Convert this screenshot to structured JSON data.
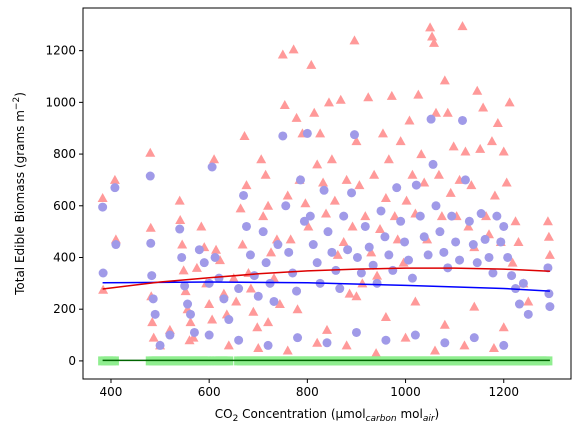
{
  "chart_data": {
    "type": "scatter",
    "title": "",
    "xlabel": {
      "main": "CO",
      "sub2": "2",
      "mid": " Concentration (µmol",
      "sub": "carbon",
      "end": " mol",
      "sub3": "air",
      "close": ")"
    },
    "ylabel": {
      "main": "Total Edible Biomass (grams m",
      "sup": "−2",
      "close": ")"
    },
    "xlim": [
      343,
      1337
    ],
    "ylim": [
      -70,
      1365
    ],
    "xticks": [
      400,
      600,
      800,
      1000,
      1200
    ],
    "yticks": [
      0,
      200,
      400,
      600,
      800,
      1000,
      1200
    ],
    "grid": false,
    "series": [
      {
        "marker": "triangle",
        "color": "#ff9999",
        "points": [
          [
            383,
            630
          ],
          [
            384,
            275
          ],
          [
            408,
            700
          ],
          [
            410,
            470
          ],
          [
            480,
            805
          ],
          [
            481,
            515
          ],
          [
            482,
            250
          ],
          [
            484,
            150
          ],
          [
            487,
            90
          ],
          [
            500,
            60
          ],
          [
            520,
            120
          ],
          [
            540,
            620
          ],
          [
            541,
            545
          ],
          [
            545,
            450
          ],
          [
            548,
            350
          ],
          [
            552,
            270
          ],
          [
            556,
            200
          ],
          [
            562,
            150
          ],
          [
            568,
            90
          ],
          [
            575,
            360
          ],
          [
            584,
            520
          ],
          [
            590,
            440
          ],
          [
            594,
            300
          ],
          [
            600,
            220
          ],
          [
            606,
            160
          ],
          [
            610,
            780
          ],
          [
            614,
            430
          ],
          [
            622,
            390
          ],
          [
            630,
            260
          ],
          [
            636,
            180
          ],
          [
            650,
            320
          ],
          [
            655,
            230
          ],
          [
            664,
            590
          ],
          [
            668,
            450
          ],
          [
            672,
            870
          ],
          [
            676,
            680
          ],
          [
            680,
            340
          ],
          [
            685,
            280
          ],
          [
            690,
            190
          ],
          [
            698,
            130
          ],
          [
            706,
            780
          ],
          [
            710,
            560
          ],
          [
            715,
            720
          ],
          [
            720,
            600
          ],
          [
            726,
            420
          ],
          [
            732,
            320
          ],
          [
            738,
            470
          ],
          [
            744,
            220
          ],
          [
            750,
            1185
          ],
          [
            754,
            990
          ],
          [
            760,
            640
          ],
          [
            766,
            470
          ],
          [
            772,
            1205
          ],
          [
            778,
            940
          ],
          [
            784,
            700
          ],
          [
            790,
            880
          ],
          [
            796,
            610
          ],
          [
            802,
            520
          ],
          [
            808,
            1145
          ],
          [
            814,
            960
          ],
          [
            820,
            760
          ],
          [
            826,
            880
          ],
          [
            832,
            690
          ],
          [
            838,
            570
          ],
          [
            844,
            1000
          ],
          [
            850,
            780
          ],
          [
            856,
            620
          ],
          [
            862,
            410
          ],
          [
            868,
            1010
          ],
          [
            874,
            460
          ],
          [
            880,
            700
          ],
          [
            886,
            260
          ],
          [
            892,
            520
          ],
          [
            896,
            1240
          ],
          [
            900,
            850
          ],
          [
            906,
            680
          ],
          [
            912,
            300
          ],
          [
            918,
            560
          ],
          [
            924,
            1020
          ],
          [
            930,
            420
          ],
          [
            936,
            720
          ],
          [
            942,
            330
          ],
          [
            948,
            510
          ],
          [
            954,
            880
          ],
          [
            960,
            630
          ],
          [
            966,
            780
          ],
          [
            972,
            1025
          ],
          [
            978,
            560
          ],
          [
            984,
            470
          ],
          [
            990,
            850
          ],
          [
            996,
            380
          ],
          [
            1002,
            620
          ],
          [
            1008,
            930
          ],
          [
            1014,
            720
          ],
          [
            1020,
            570
          ],
          [
            1026,
            1030
          ],
          [
            1032,
            800
          ],
          [
            1038,
            690
          ],
          [
            1044,
            470
          ],
          [
            1050,
            1290
          ],
          [
            1054,
            1255
          ],
          [
            1058,
            1230
          ],
          [
            1062,
            960
          ],
          [
            1068,
            720
          ],
          [
            1074,
            560
          ],
          [
            1080,
            1085
          ],
          [
            1086,
            960
          ],
          [
            1092,
            650
          ],
          [
            1098,
            830
          ],
          [
            1104,
            560
          ],
          [
            1110,
            700
          ],
          [
            1116,
            1295
          ],
          [
            1122,
            810
          ],
          [
            1128,
            520
          ],
          [
            1134,
            680
          ],
          [
            1140,
            440
          ],
          [
            1146,
            1045
          ],
          [
            1152,
            820
          ],
          [
            1158,
            980
          ],
          [
            1164,
            560
          ],
          [
            1170,
            490
          ],
          [
            1176,
            850
          ],
          [
            1182,
            640
          ],
          [
            1188,
            920
          ],
          [
            1194,
            460
          ],
          [
            1200,
            810
          ],
          [
            1206,
            690
          ],
          [
            1212,
            1000
          ],
          [
            1218,
            380
          ],
          [
            1224,
            540
          ],
          [
            1230,
            460
          ],
          [
            1240,
            300
          ],
          [
            1250,
            230
          ],
          [
            1290,
            540
          ],
          [
            1292,
            480
          ],
          [
            1294,
            410
          ],
          [
            560,
            80
          ],
          [
            640,
            60
          ],
          [
            700,
            50
          ],
          [
            760,
            40
          ],
          [
            820,
            70
          ],
          [
            880,
            60
          ],
          [
            940,
            30
          ],
          [
            1000,
            90
          ],
          [
            1060,
            40
          ],
          [
            1120,
            60
          ],
          [
            1180,
            50
          ],
          [
            720,
            150
          ],
          [
            780,
            200
          ],
          [
            840,
            120
          ],
          [
            900,
            250
          ],
          [
            960,
            170
          ],
          [
            1020,
            230
          ],
          [
            1080,
            140
          ],
          [
            1140,
            210
          ],
          [
            1200,
            130
          ]
        ]
      },
      {
        "marker": "circle",
        "color": "#a09ae8",
        "points": [
          [
            383,
            595
          ],
          [
            384,
            340
          ],
          [
            408,
            670
          ],
          [
            410,
            450
          ],
          [
            480,
            715
          ],
          [
            481,
            455
          ],
          [
            483,
            330
          ],
          [
            486,
            240
          ],
          [
            490,
            180
          ],
          [
            500,
            60
          ],
          [
            520,
            100
          ],
          [
            540,
            510
          ],
          [
            544,
            400
          ],
          [
            550,
            290
          ],
          [
            556,
            220
          ],
          [
            562,
            180
          ],
          [
            570,
            110
          ],
          [
            580,
            430
          ],
          [
            590,
            380
          ],
          [
            600,
            300
          ],
          [
            606,
            750
          ],
          [
            612,
            400
          ],
          [
            620,
            320
          ],
          [
            630,
            240
          ],
          [
            640,
            160
          ],
          [
            660,
            280
          ],
          [
            670,
            640
          ],
          [
            676,
            520
          ],
          [
            684,
            410
          ],
          [
            692,
            330
          ],
          [
            700,
            250
          ],
          [
            710,
            500
          ],
          [
            716,
            380
          ],
          [
            724,
            300
          ],
          [
            732,
            230
          ],
          [
            740,
            450
          ],
          [
            750,
            870
          ],
          [
            756,
            600
          ],
          [
            762,
            420
          ],
          [
            770,
            340
          ],
          [
            778,
            270
          ],
          [
            786,
            700
          ],
          [
            794,
            540
          ],
          [
            800,
            880
          ],
          [
            806,
            560
          ],
          [
            812,
            450
          ],
          [
            820,
            380
          ],
          [
            826,
            300
          ],
          [
            834,
            660
          ],
          [
            842,
            500
          ],
          [
            850,
            420
          ],
          [
            858,
            350
          ],
          [
            866,
            280
          ],
          [
            874,
            560
          ],
          [
            882,
            430
          ],
          [
            890,
            650
          ],
          [
            896,
            875
          ],
          [
            902,
            400
          ],
          [
            910,
            340
          ],
          [
            918,
            520
          ],
          [
            926,
            440
          ],
          [
            934,
            370
          ],
          [
            942,
            300
          ],
          [
            950,
            580
          ],
          [
            958,
            480
          ],
          [
            966,
            410
          ],
          [
            974,
            350
          ],
          [
            982,
            670
          ],
          [
            990,
            540
          ],
          [
            998,
            460
          ],
          [
            1006,
            390
          ],
          [
            1014,
            320
          ],
          [
            1022,
            680
          ],
          [
            1030,
            560
          ],
          [
            1038,
            480
          ],
          [
            1046,
            410
          ],
          [
            1052,
            935
          ],
          [
            1056,
            760
          ],
          [
            1062,
            600
          ],
          [
            1070,
            500
          ],
          [
            1078,
            420
          ],
          [
            1086,
            360
          ],
          [
            1094,
            560
          ],
          [
            1102,
            460
          ],
          [
            1110,
            390
          ],
          [
            1116,
            930
          ],
          [
            1122,
            700
          ],
          [
            1130,
            540
          ],
          [
            1138,
            450
          ],
          [
            1146,
            380
          ],
          [
            1154,
            570
          ],
          [
            1162,
            470
          ],
          [
            1170,
            400
          ],
          [
            1178,
            340
          ],
          [
            1186,
            560
          ],
          [
            1194,
            460
          ],
          [
            1200,
            520
          ],
          [
            1208,
            400
          ],
          [
            1216,
            330
          ],
          [
            1224,
            280
          ],
          [
            1232,
            220
          ],
          [
            1240,
            300
          ],
          [
            1250,
            180
          ],
          [
            1290,
            360
          ],
          [
            1292,
            260
          ],
          [
            1294,
            210
          ],
          [
            600,
            100
          ],
          [
            660,
            80
          ],
          [
            720,
            60
          ],
          [
            780,
            90
          ],
          [
            840,
            70
          ],
          [
            900,
            110
          ],
          [
            960,
            80
          ],
          [
            1020,
            100
          ],
          [
            1080,
            70
          ],
          [
            1140,
            90
          ],
          [
            1200,
            60
          ]
        ]
      },
      {
        "marker": "square",
        "color": "#90ee90",
        "x_ranges": [
          [
            383,
            410
          ],
          [
            480,
            600
          ],
          [
            610,
            640
          ],
          [
            660,
            1294
          ]
        ],
        "y": 0
      }
    ],
    "trend_lines": [
      {
        "color": "#0000ff",
        "points": [
          [
            383,
            302
          ],
          [
            600,
            305
          ],
          [
            800,
            302
          ],
          [
            1000,
            292
          ],
          [
            1200,
            280
          ],
          [
            1294,
            270
          ]
        ]
      },
      {
        "color": "#dd0000",
        "points": [
          [
            383,
            278
          ],
          [
            500,
            305
          ],
          [
            600,
            322
          ],
          [
            700,
            337
          ],
          [
            800,
            348
          ],
          [
            900,
            355
          ],
          [
            1000,
            359
          ],
          [
            1100,
            359
          ],
          [
            1200,
            355
          ],
          [
            1294,
            347
          ]
        ]
      },
      {
        "color": "#006400",
        "points": [
          [
            383,
            2
          ],
          [
            1294,
            2
          ]
        ]
      }
    ]
  }
}
